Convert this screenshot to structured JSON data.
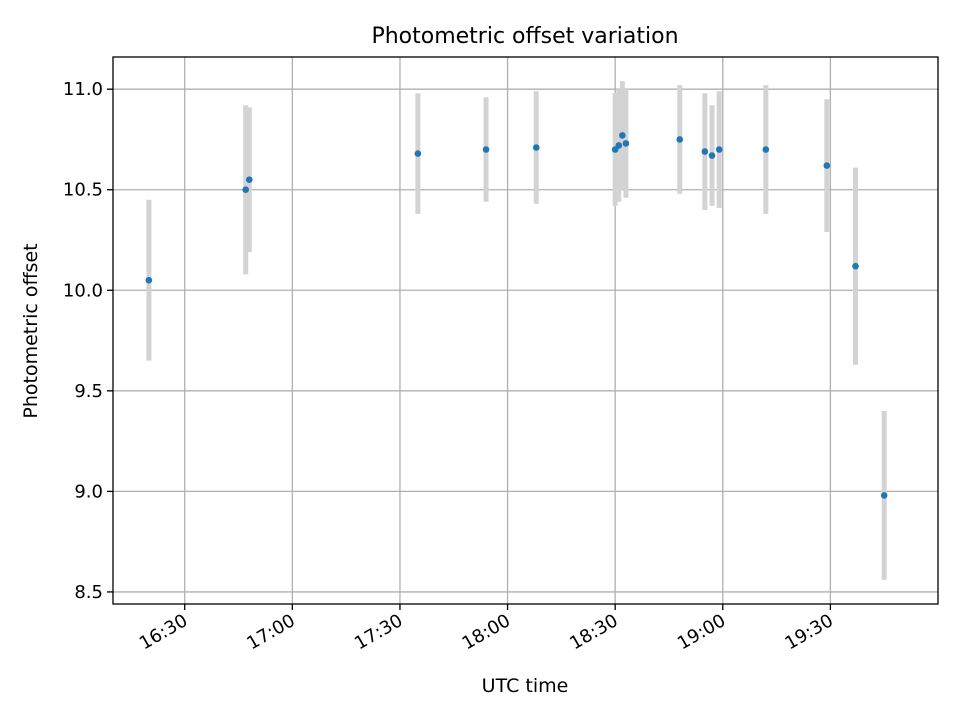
{
  "chart_data": {
    "type": "scatter",
    "title": "Photometric offset variation",
    "xlabel": "UTC time",
    "ylabel": "Photometric offset",
    "x_axis": "time",
    "xlim": [
      "16:10",
      "20:00"
    ],
    "ylim": [
      8.44,
      11.16
    ],
    "x_ticks": [
      "16:30",
      "17:00",
      "17:30",
      "18:00",
      "18:30",
      "19:00",
      "19:30"
    ],
    "y_ticks": [
      8.5,
      9.0,
      9.5,
      10.0,
      10.5,
      11.0
    ],
    "y_tick_labels": [
      "8.5",
      "9.0",
      "9.5",
      "10.0",
      "10.5",
      "11.0"
    ],
    "grid": true,
    "series": [
      {
        "marker_color": "#1f77b4",
        "errorbar_color": "#d3d3d3",
        "points": [
          {
            "x": "16:20",
            "y": 10.05,
            "err": 0.4
          },
          {
            "x": "16:47",
            "y": 10.5,
            "err": 0.42
          },
          {
            "x": "16:48",
            "y": 10.55,
            "err": 0.36
          },
          {
            "x": "17:35",
            "y": 10.68,
            "err": 0.3
          },
          {
            "x": "17:54",
            "y": 10.7,
            "err": 0.26
          },
          {
            "x": "18:08",
            "y": 10.71,
            "err": 0.28
          },
          {
            "x": "18:30",
            "y": 10.7,
            "err": 0.28
          },
          {
            "x": "18:31",
            "y": 10.72,
            "err": 0.28
          },
          {
            "x": "18:32",
            "y": 10.77,
            "err": 0.27
          },
          {
            "x": "18:33",
            "y": 10.73,
            "err": 0.27
          },
          {
            "x": "18:48",
            "y": 10.75,
            "err": 0.27
          },
          {
            "x": "18:55",
            "y": 10.69,
            "err": 0.29
          },
          {
            "x": "18:57",
            "y": 10.67,
            "err": 0.25
          },
          {
            "x": "18:59",
            "y": 10.7,
            "err": 0.29
          },
          {
            "x": "19:12",
            "y": 10.7,
            "err": 0.32
          },
          {
            "x": "19:29",
            "y": 10.62,
            "err": 0.33
          },
          {
            "x": "19:37",
            "y": 10.12,
            "err": 0.49
          },
          {
            "x": "19:45",
            "y": 8.98,
            "err": 0.42
          }
        ]
      }
    ]
  }
}
